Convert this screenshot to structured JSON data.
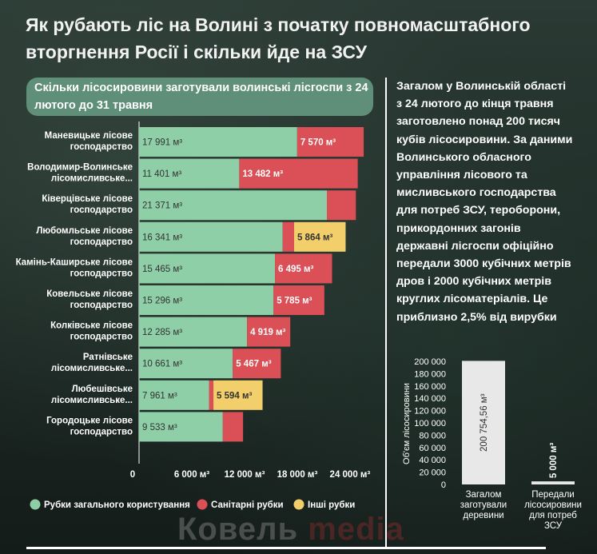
{
  "title": "Як рубають ліс на Волині з початку повномасштабного вторгнення Росії і скільки йде на ЗСУ",
  "subtitle": "Скільки лісосировини заготували волинські лісгоспи з 24 лютого до 31 травня",
  "summary": "Загалом у Волинській області з 24 лютого до кінця травня заготовлено понад 200 тисяч кубів лісосировини. За даними Волинського обласного управління лісового та мисливського господарства для потреб ЗСУ, тероборони, прикордонних загонів державні лісгоспи офіційно передали 3000 кубічних метрів дров і 2000 кубічних метрів круглих лісоматеріалів. Це приблизно 2,5% від вирубки",
  "watermark": {
    "part1": "Ковель ",
    "part2": "media"
  },
  "colors": {
    "general": "#8fcfa8",
    "sanitary": "#db4f56",
    "other": "#f2cf6b",
    "axis": "#ffffff",
    "gray_bar": "#e8e8e8"
  },
  "chart_data": [
    {
      "type": "bar",
      "orientation": "horizontal",
      "stacked": true,
      "categories": [
        "Маневицьке лісове господарство",
        "Володимир-Волинське лісомисливське...",
        "Ківерцівське лісове господарство",
        "Любомльське лісове господарство",
        "Камінь-Каширське лісове господарство",
        "Ковельське лісове господарство",
        "Колківське лісове господарство",
        "Ратнівське лісомисливське...",
        "Любешівське лісомисливське...",
        "Городоцьке лісове господарство"
      ],
      "series": [
        {
          "name": "Рубки загального користування",
          "values": [
            17991,
            11401,
            21371,
            16341,
            15465,
            15296,
            12285,
            10661,
            7961,
            9533
          ],
          "labels": [
            "17 991 м³",
            "11 401 м³",
            "21 371 м³",
            "16 341 м³",
            "15 465 м³",
            "15 296 м³",
            "12 285 м³",
            "10 661 м³",
            "7 961 м³",
            "9 533 м³"
          ]
        },
        {
          "name": "Санітарні рубки",
          "values": [
            7570,
            13482,
            3300,
            1300,
            6495,
            5785,
            4919,
            5467,
            500,
            2300
          ],
          "labels": [
            "7 570 м³",
            "13 482 м³",
            "",
            "",
            "6 495 м³",
            "5 785 м³",
            "4 919 м³",
            "5 467 м³",
            "",
            ""
          ]
        },
        {
          "name": "Інші рубки",
          "values": [
            0,
            0,
            0,
            5864,
            0,
            0,
            0,
            0,
            5594,
            0
          ],
          "labels": [
            "",
            "",
            "",
            "5 864 м³",
            "",
            "",
            "",
            "",
            "5 594 м³",
            ""
          ]
        }
      ],
      "xlim": [
        0,
        30000
      ],
      "xticks": [
        0,
        6000,
        12000,
        18000,
        24000
      ],
      "xtick_labels": [
        "0",
        "6 000 м³",
        "12 000 м³",
        "18 000 м³",
        "24 000 м³"
      ],
      "legend": "bottom"
    },
    {
      "type": "bar",
      "orientation": "vertical",
      "categories": [
        "Загалом заготували деревини",
        "Передали лісосировини для потреб ЗСУ"
      ],
      "values": [
        200754.56,
        5000
      ],
      "value_labels": [
        "200 754,56 м³",
        "5 000 м³"
      ],
      "ylabel": "Об'єм лісосировини",
      "ylim": [
        0,
        200000
      ],
      "yticks": [
        0,
        20000,
        40000,
        60000,
        80000,
        100000,
        120000,
        140000,
        160000,
        180000,
        200000
      ],
      "ytick_labels": [
        "0",
        "20 000",
        "40 000",
        "60 000",
        "80 000",
        "100 000",
        "120 000",
        "140 000",
        "160 000",
        "180 000",
        "200 000"
      ]
    }
  ]
}
